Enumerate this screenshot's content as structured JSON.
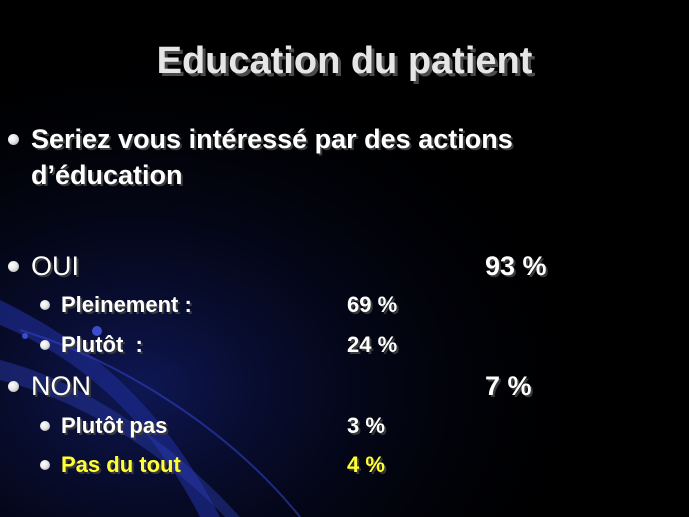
{
  "title": "Education du patient",
  "question": {
    "line1": "Seriez vous intéressé par des actions",
    "line2": "d’éducation"
  },
  "oui": {
    "label": "OUI",
    "value": "93 %",
    "items": [
      {
        "label": "Pleinement :",
        "value": "69 %"
      },
      {
        "label": "Plutôt  :",
        "value": "24 %"
      }
    ]
  },
  "non": {
    "label": "NON",
    "value": "7 %",
    "items": [
      {
        "label": "Plutôt pas",
        "value": "3 %"
      },
      {
        "label": "Pas du tout",
        "value": "4 %"
      }
    ]
  },
  "colors": {
    "background": "#000000",
    "text": "#ffffff",
    "title": "#e6e6e6",
    "highlight": "#ffff33",
    "swoosh": "#1c2a8c"
  }
}
